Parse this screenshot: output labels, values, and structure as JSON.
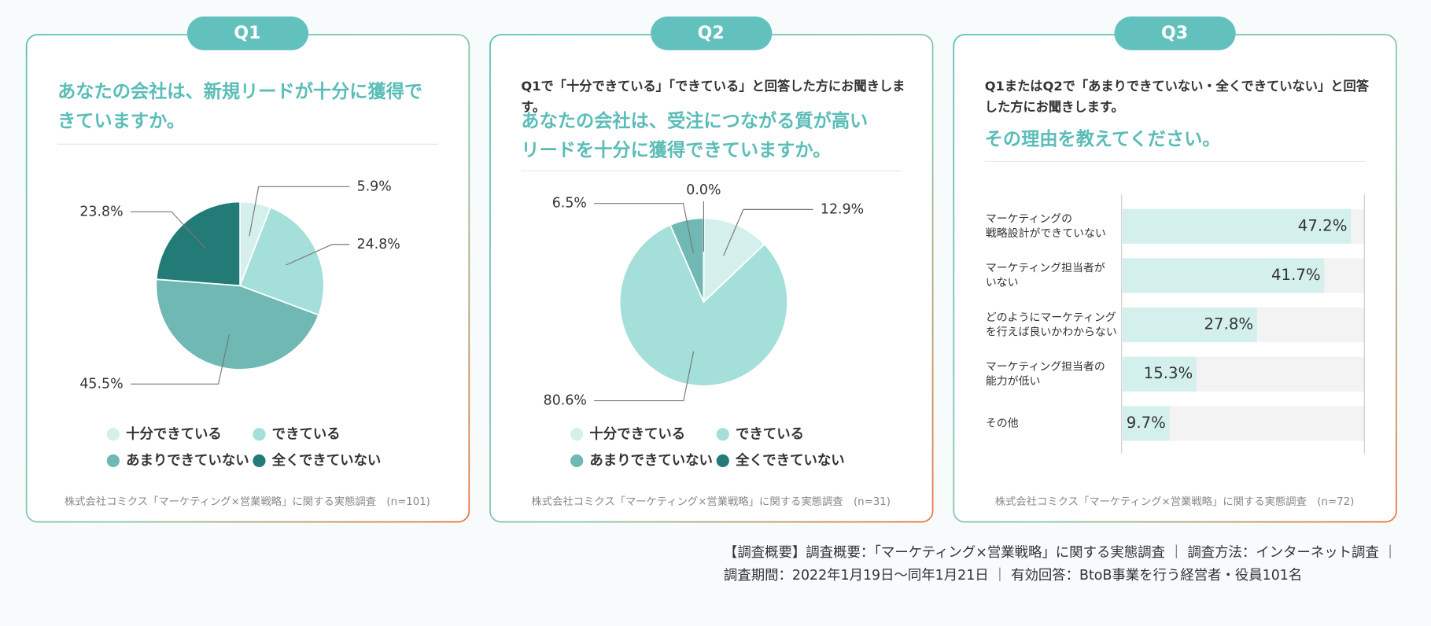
{
  "chart_data": [
    {
      "type": "pie",
      "badge": "Q1",
      "title": "あなたの会社は、新規リードが十分に獲得できていますか。",
      "categories": [
        "十分できている",
        "できている",
        "あまりできていない",
        "全くできていない"
      ],
      "values": [
        5.9,
        24.8,
        45.5,
        23.8
      ],
      "value_labels": [
        "5.9%",
        "24.8%",
        "45.5%",
        "23.8%"
      ],
      "colors": [
        "#d5f0ec",
        "#a4dfda",
        "#6fb8b3",
        "#237b78"
      ],
      "note": "株式会社コミクス「マーケティング×営業戦略」に関する実態調査　(n=101)"
    },
    {
      "type": "pie",
      "badge": "Q2",
      "subtitle": "Q1で「十分できている」「できている」と回答した方にお聞きします。",
      "title": "あなたの会社は、受注につながる質が高いリードを十分に獲得できていますか。",
      "categories": [
        "十分できている",
        "できている",
        "あまりできていない",
        "全くできていない"
      ],
      "values": [
        12.9,
        80.6,
        6.5,
        0.0
      ],
      "value_labels": [
        "12.9%",
        "80.6%",
        "6.5%",
        "0.0%"
      ],
      "colors": [
        "#d5f0ec",
        "#a4dfda",
        "#6fb8b3",
        "#237b78"
      ],
      "note": "株式会社コミクス「マーケティング×営業戦略」に関する実態調査　(n=31)"
    },
    {
      "type": "barh",
      "badge": "Q3",
      "subtitle": "Q1またはQ2で「あまりできていない・全くできていない」と回答した方にお聞きします。",
      "title": "その理由を教えてください。",
      "categories": [
        "マーケティングの\n戦略設計ができていない",
        "マーケティング担当者が\nいない",
        "どのようにマーケティング\nを行えば良いかわからない",
        "マーケティング担当者の\n能力が低い",
        "その他"
      ],
      "values": [
        47.2,
        41.7,
        27.8,
        15.3,
        9.7
      ],
      "value_labels": [
        "47.2%",
        "41.7%",
        "27.8%",
        "15.3%",
        "9.7%"
      ],
      "color": "#d4f0ec",
      "xlim": [
        0,
        50
      ],
      "note": "株式会社コミクス「マーケティング×営業戦略」に関する実態調査　(n=72)"
    }
  ],
  "footer": [
    "【調査概要】調査概要：「マーケティング×営業戦略」に関する実態調査 ｜ 調査方法：インターネット調査 ｜",
    "調査期間：2022年1月19日〜同年1月21日 ｜ 有効回答：BtoB事業を行う経営者・役員101名"
  ]
}
